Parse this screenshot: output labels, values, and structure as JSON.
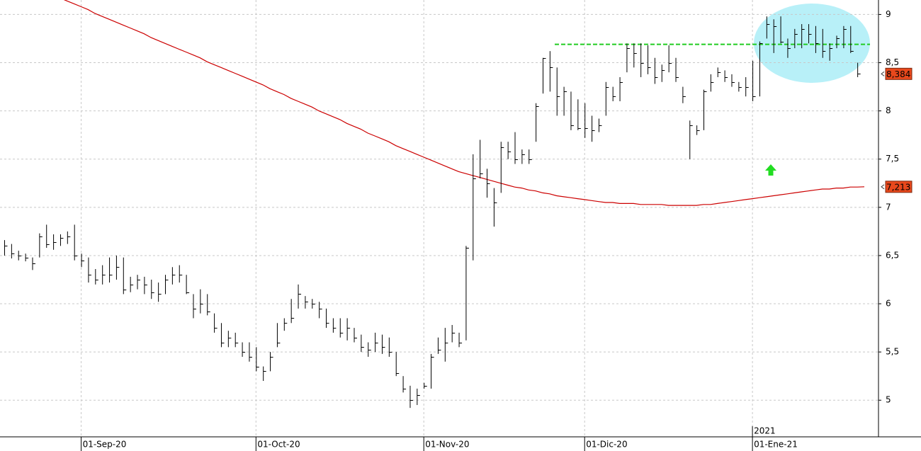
{
  "chart_data": {
    "type": "ohlc",
    "categories": [
      null,
      null,
      null,
      null,
      null,
      null,
      null,
      null,
      null,
      null,
      null,
      "01-Sep-20",
      null,
      null,
      null,
      null,
      null,
      null,
      null,
      null,
      null,
      null,
      null,
      null,
      null,
      null,
      null,
      null,
      null,
      null,
      null,
      null,
      null,
      null,
      null,
      null,
      "01-Oct-20",
      null,
      null,
      null,
      null,
      null,
      null,
      null,
      null,
      null,
      null,
      null,
      null,
      null,
      null,
      null,
      null,
      null,
      null,
      null,
      null,
      null,
      null,
      null,
      "01-Nov-20",
      null,
      null,
      null,
      null,
      null,
      null,
      null,
      null,
      null,
      null,
      null,
      null,
      null,
      null,
      null,
      null,
      null,
      null,
      null,
      null,
      null,
      null,
      "01-Dic-20",
      null,
      null,
      null,
      null,
      null,
      null,
      null,
      null,
      null,
      null,
      null,
      null,
      null,
      null,
      null,
      null,
      null,
      null,
      null,
      null,
      null,
      null,
      null,
      "01-Ene-21",
      null,
      null,
      null,
      null,
      null,
      null,
      null,
      null,
      null,
      null,
      null,
      null,
      null,
      null,
      null
    ],
    "year_label": "2021",
    "high": [
      6.66,
      6.62,
      6.55,
      6.52,
      6.48,
      6.73,
      6.82,
      6.72,
      6.72,
      6.75,
      6.82,
      6.52,
      6.48,
      6.36,
      6.4,
      6.48,
      6.5,
      6.48,
      6.28,
      6.3,
      6.28,
      6.25,
      6.22,
      6.3,
      6.38,
      6.4,
      6.3,
      6.1,
      6.15,
      6.1,
      5.9,
      5.8,
      5.72,
      5.7,
      5.6,
      5.6,
      5.55,
      5.35,
      5.5,
      5.8,
      5.85,
      6.05,
      6.2,
      6.08,
      6.05,
      6.02,
      5.95,
      5.85,
      5.85,
      5.85,
      5.75,
      5.68,
      5.6,
      5.7,
      5.68,
      5.65,
      5.5,
      5.25,
      5.15,
      5.12,
      5.18,
      5.48,
      5.65,
      5.75,
      5.78,
      5.7,
      6.6,
      7.55,
      7.7,
      7.4,
      7.2,
      7.68,
      7.68,
      7.78,
      7.6,
      7.6,
      8.08,
      8.55,
      8.62,
      8.45,
      8.25,
      8.2,
      8.12,
      8.08,
      7.95,
      7.92,
      8.3,
      8.25,
      8.35,
      8.7,
      8.7,
      8.7,
      8.68,
      8.55,
      8.48,
      8.68,
      8.55,
      8.25,
      7.9,
      7.85,
      8.22,
      8.38,
      8.45,
      8.42,
      8.38,
      8.3,
      8.35,
      8.52,
      8.72,
      8.98,
      8.95,
      8.98,
      8.75,
      8.85,
      8.9,
      8.9,
      8.88,
      8.85,
      8.7,
      8.78,
      8.88,
      8.88,
      8.5
    ],
    "low": [
      6.5,
      6.47,
      6.45,
      6.44,
      6.35,
      6.48,
      6.58,
      6.56,
      6.6,
      6.62,
      6.45,
      6.38,
      6.22,
      6.2,
      6.2,
      6.22,
      6.25,
      6.1,
      6.12,
      6.15,
      6.1,
      6.05,
      6.02,
      6.1,
      6.2,
      6.22,
      6.1,
      5.85,
      5.9,
      5.88,
      5.7,
      5.55,
      5.55,
      5.55,
      5.45,
      5.4,
      5.3,
      5.2,
      5.3,
      5.55,
      5.72,
      5.8,
      5.95,
      5.95,
      5.95,
      5.85,
      5.75,
      5.7,
      5.65,
      5.62,
      5.6,
      5.5,
      5.45,
      5.5,
      5.48,
      5.45,
      5.25,
      5.08,
      4.92,
      4.95,
      5.12,
      5.12,
      5.48,
      5.4,
      5.6,
      5.55,
      5.62,
      6.45,
      7.3,
      7.1,
      6.8,
      7.15,
      7.5,
      7.45,
      7.45,
      7.45,
      7.68,
      8.18,
      8.2,
      7.95,
      7.95,
      7.8,
      7.8,
      7.72,
      7.68,
      7.78,
      7.95,
      8.1,
      8.1,
      8.4,
      8.45,
      8.35,
      8.38,
      8.28,
      8.3,
      8.4,
      8.3,
      8.08,
      7.5,
      7.75,
      7.8,
      8.2,
      8.35,
      8.3,
      8.25,
      8.2,
      8.15,
      8.1,
      8.15,
      8.75,
      8.6,
      8.7,
      8.55,
      8.65,
      8.65,
      8.7,
      8.6,
      8.55,
      8.52,
      8.65,
      8.65,
      8.6,
      8.35
    ],
    "close": [
      6.6,
      6.52,
      6.5,
      6.48,
      6.42,
      6.7,
      6.62,
      6.64,
      6.68,
      6.7,
      6.5,
      6.45,
      6.3,
      6.25,
      6.3,
      6.3,
      6.38,
      6.15,
      6.2,
      6.25,
      6.2,
      6.12,
      6.1,
      6.25,
      6.3,
      6.3,
      6.12,
      5.95,
      6.0,
      5.92,
      5.75,
      5.6,
      5.65,
      5.6,
      5.5,
      5.45,
      5.35,
      5.3,
      5.45,
      5.6,
      5.8,
      5.85,
      6.1,
      6.02,
      6.0,
      5.95,
      5.8,
      5.75,
      5.7,
      5.75,
      5.65,
      5.55,
      5.52,
      5.6,
      5.55,
      5.5,
      5.28,
      5.12,
      5.0,
      5.05,
      5.15,
      5.45,
      5.52,
      5.6,
      5.7,
      5.6,
      6.58,
      7.3,
      7.35,
      7.25,
      7.05,
      7.62,
      7.58,
      7.5,
      7.55,
      7.5,
      8.05,
      8.55,
      8.45,
      8.15,
      8.2,
      7.85,
      7.82,
      7.82,
      7.8,
      7.85,
      8.25,
      8.15,
      8.3,
      8.65,
      8.6,
      8.5,
      8.45,
      8.35,
      8.42,
      8.5,
      8.35,
      8.15,
      7.85,
      7.8,
      8.2,
      8.3,
      8.4,
      8.35,
      8.3,
      8.25,
      8.25,
      8.15,
      8.7,
      8.9,
      8.88,
      8.72,
      8.65,
      8.8,
      8.85,
      8.8,
      8.7,
      8.62,
      8.65,
      8.75,
      8.85,
      8.62,
      8.384
    ],
    "bar_color": "#000000",
    "moving_average": {
      "color": "#cc0000",
      "values": [
        null,
        null,
        null,
        null,
        null,
        null,
        null,
        null,
        9.17,
        9.14,
        9.11,
        9.08,
        9.05,
        9.01,
        8.98,
        8.95,
        8.92,
        8.89,
        8.86,
        8.83,
        8.8,
        8.76,
        8.73,
        8.7,
        8.67,
        8.64,
        8.61,
        8.58,
        8.55,
        8.51,
        8.48,
        8.45,
        8.42,
        8.39,
        8.36,
        8.33,
        8.3,
        8.27,
        8.23,
        8.2,
        8.17,
        8.13,
        8.1,
        8.07,
        8.04,
        8.0,
        7.97,
        7.94,
        7.91,
        7.87,
        7.84,
        7.81,
        7.77,
        7.74,
        7.71,
        7.68,
        7.64,
        7.61,
        7.58,
        7.55,
        7.52,
        7.49,
        7.46,
        7.43,
        7.4,
        7.37,
        7.35,
        7.33,
        7.31,
        7.29,
        7.27,
        7.25,
        7.23,
        7.21,
        7.2,
        7.18,
        7.17,
        7.15,
        7.14,
        7.12,
        7.11,
        7.1,
        7.09,
        7.08,
        7.07,
        7.06,
        7.05,
        7.05,
        7.04,
        7.04,
        7.04,
        7.03,
        7.03,
        7.03,
        7.03,
        7.02,
        7.02,
        7.02,
        7.02,
        7.02,
        7.03,
        7.03,
        7.04,
        7.05,
        7.06,
        7.07,
        7.08,
        7.09,
        7.1,
        7.11,
        7.12,
        7.13,
        7.14,
        7.15,
        7.16,
        7.17,
        7.18,
        7.19,
        7.19,
        7.2,
        7.2,
        7.21,
        7.21,
        7.213
      ]
    },
    "resistance": {
      "value": 8.69,
      "color": "#22cc22"
    },
    "price_labels": [
      {
        "value": 8.384,
        "label": "8,384",
        "color": "#e8481c"
      },
      {
        "value": 7.213,
        "label": "7,213",
        "color": "#e8481c"
      }
    ],
    "ylim": [
      4.62,
      9.15
    ],
    "yticks": [
      5,
      {
        "value": 5.5,
        "label": "5,5"
      },
      6,
      {
        "value": 6.5,
        "label": "6,5"
      },
      7,
      {
        "value": 7.5,
        "label": "7,5"
      },
      8,
      {
        "value": 8.5,
        "label": "8,5"
      },
      9
    ],
    "grid": true
  }
}
